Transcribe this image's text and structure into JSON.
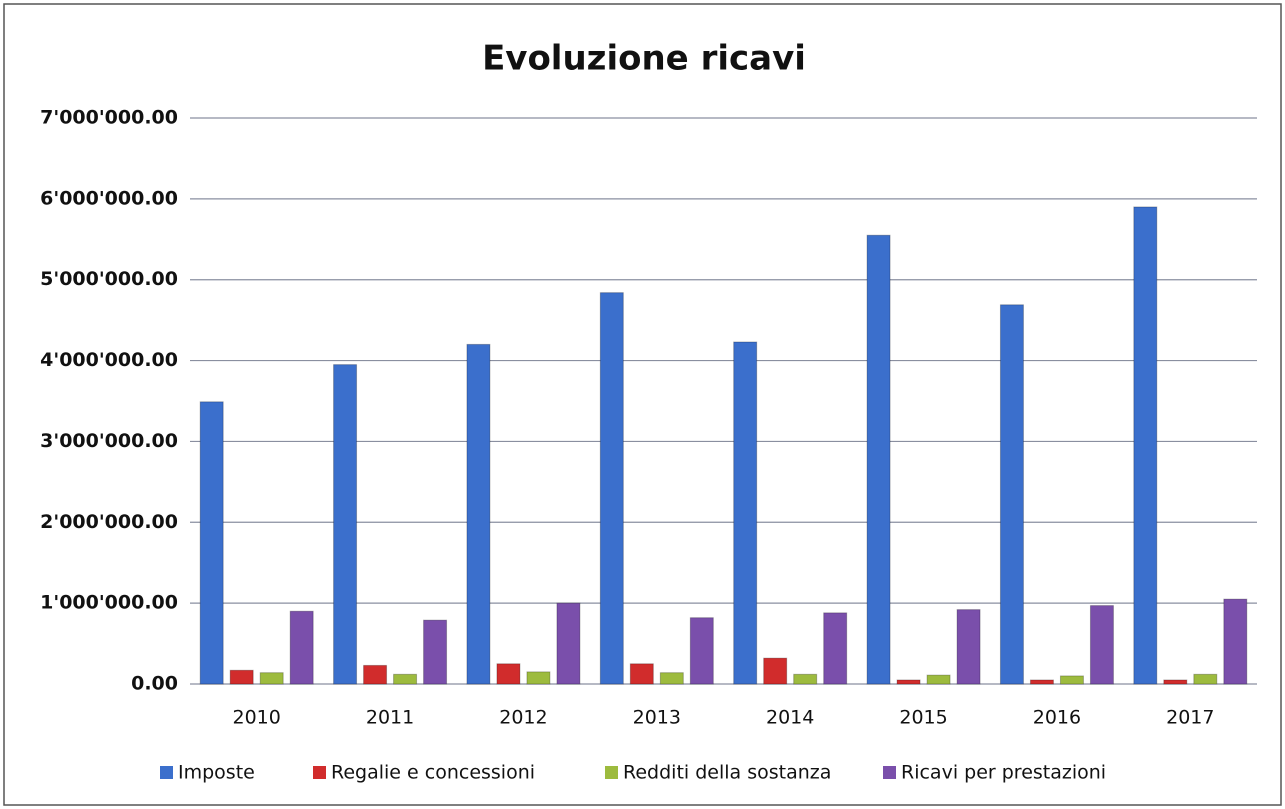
{
  "chart_data": {
    "type": "bar",
    "title": "Evoluzione ricavi",
    "categories": [
      "2010",
      "2011",
      "2012",
      "2013",
      "2014",
      "2015",
      "2016",
      "2017"
    ],
    "series": [
      {
        "name": "Imposte",
        "color": "#3b6fcc",
        "values": [
          3490000,
          3950000,
          4200000,
          4840000,
          4230000,
          5550000,
          4690000,
          5900000
        ]
      },
      {
        "name": "Regalie e concessioni",
        "color": "#d12c2c",
        "values": [
          170000,
          230000,
          250000,
          250000,
          320000,
          50000,
          50000,
          50000
        ]
      },
      {
        "name": "Redditi della sostanza",
        "color": "#9dbb3e",
        "values": [
          140000,
          120000,
          150000,
          140000,
          120000,
          110000,
          100000,
          120000
        ]
      },
      {
        "name": "Ricavi per prestazioni",
        "color": "#7a4fab",
        "values": [
          900000,
          790000,
          1000000,
          820000,
          880000,
          920000,
          970000,
          1050000
        ]
      }
    ],
    "ylim": [
      0,
      7000000
    ],
    "yticks": [
      {
        "value": 0,
        "label": "0.00"
      },
      {
        "value": 1000000,
        "label": "1'000'000.00"
      },
      {
        "value": 2000000,
        "label": "2'000'000.00"
      },
      {
        "value": 3000000,
        "label": "3'000'000.00"
      },
      {
        "value": 4000000,
        "label": "4'000'000.00"
      },
      {
        "value": 5000000,
        "label": "5'000'000.00"
      },
      {
        "value": 6000000,
        "label": "6'000'000.00"
      },
      {
        "value": 7000000,
        "label": "7'000'000.00"
      }
    ],
    "grid": true,
    "legend": "bottom"
  }
}
